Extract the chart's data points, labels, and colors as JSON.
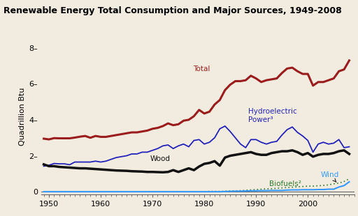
{
  "title": "Renewable Energy Total Consumption and Major Sources, 1949-2008",
  "ylabel": "Quadrillion Btu",
  "ylim": [
    -0.15,
    8.5
  ],
  "yticks": [
    0,
    2,
    4,
    6,
    8
  ],
  "xlim": [
    1948.5,
    2009
  ],
  "xticks": [
    1950,
    1960,
    1970,
    1980,
    1990,
    2000
  ],
  "background_color": "#f2ece0",
  "total_color": "#9b1c1c",
  "hydro_color": "#2222bb",
  "wood_color": "#111111",
  "biofuels_color": "#2d7a2d",
  "wind_color": "#3399ff",
  "years": [
    1949,
    1950,
    1951,
    1952,
    1953,
    1954,
    1955,
    1956,
    1957,
    1958,
    1959,
    1960,
    1961,
    1962,
    1963,
    1964,
    1965,
    1966,
    1967,
    1968,
    1969,
    1970,
    1971,
    1972,
    1973,
    1974,
    1975,
    1976,
    1977,
    1978,
    1979,
    1980,
    1981,
    1982,
    1983,
    1984,
    1985,
    1986,
    1987,
    1988,
    1989,
    1990,
    1991,
    1992,
    1993,
    1994,
    1995,
    1996,
    1997,
    1998,
    1999,
    2000,
    2001,
    2002,
    2003,
    2004,
    2005,
    2006,
    2007,
    2008
  ],
  "total": [
    2.95,
    2.91,
    2.98,
    2.97,
    2.97,
    2.97,
    3.01,
    3.06,
    3.1,
    3.0,
    3.1,
    3.05,
    3.05,
    3.1,
    3.15,
    3.2,
    3.25,
    3.3,
    3.3,
    3.35,
    3.4,
    3.5,
    3.55,
    3.65,
    3.8,
    3.7,
    3.75,
    3.95,
    4.0,
    4.2,
    4.55,
    4.35,
    4.45,
    4.85,
    5.1,
    5.65,
    5.95,
    6.15,
    6.15,
    6.2,
    6.45,
    6.3,
    6.1,
    6.2,
    6.25,
    6.3,
    6.6,
    6.85,
    6.9,
    6.7,
    6.55,
    6.55,
    5.9,
    6.1,
    6.1,
    6.2,
    6.3,
    6.7,
    6.8,
    7.3
  ],
  "hydro": [
    1.42,
    1.47,
    1.57,
    1.55,
    1.55,
    1.5,
    1.65,
    1.65,
    1.65,
    1.65,
    1.7,
    1.65,
    1.7,
    1.8,
    1.9,
    1.95,
    2.0,
    2.1,
    2.1,
    2.2,
    2.2,
    2.3,
    2.4,
    2.55,
    2.6,
    2.4,
    2.55,
    2.65,
    2.5,
    2.85,
    2.9,
    2.65,
    2.75,
    3.0,
    3.5,
    3.65,
    3.35,
    3.0,
    2.65,
    2.45,
    2.9,
    2.9,
    2.75,
    2.65,
    2.75,
    2.8,
    3.15,
    3.45,
    3.6,
    3.3,
    3.1,
    2.85,
    2.2,
    2.65,
    2.75,
    2.65,
    2.7,
    2.9,
    2.45,
    2.5
  ],
  "wood": [
    1.52,
    1.42,
    1.42,
    1.38,
    1.36,
    1.34,
    1.32,
    1.3,
    1.3,
    1.28,
    1.26,
    1.24,
    1.22,
    1.2,
    1.18,
    1.17,
    1.16,
    1.14,
    1.13,
    1.12,
    1.1,
    1.1,
    1.09,
    1.08,
    1.1,
    1.2,
    1.1,
    1.2,
    1.3,
    1.2,
    1.4,
    1.55,
    1.6,
    1.7,
    1.45,
    1.9,
    2.0,
    2.05,
    2.1,
    2.15,
    2.2,
    2.1,
    2.05,
    2.05,
    2.15,
    2.2,
    2.25,
    2.25,
    2.3,
    2.2,
    2.05,
    2.15,
    1.95,
    2.05,
    2.1,
    2.1,
    2.15,
    2.25,
    2.3,
    2.1
  ],
  "biofuels": [
    0.0,
    0.0,
    0.0,
    0.0,
    0.0,
    0.0,
    0.0,
    0.0,
    0.0,
    0.0,
    0.0,
    0.0,
    0.0,
    0.0,
    0.0,
    0.0,
    0.0,
    0.0,
    0.0,
    0.0,
    0.0,
    0.0,
    0.0,
    0.0,
    0.0,
    0.0,
    0.0,
    0.0,
    0.0,
    0.0,
    0.0,
    0.01,
    0.02,
    0.02,
    0.02,
    0.03,
    0.04,
    0.05,
    0.06,
    0.08,
    0.1,
    0.12,
    0.14,
    0.16,
    0.17,
    0.19,
    0.21,
    0.23,
    0.25,
    0.27,
    0.29,
    0.31,
    0.31,
    0.33,
    0.35,
    0.38,
    0.44,
    0.48,
    0.57,
    0.72
  ],
  "wind": [
    0.0,
    0.0,
    0.0,
    0.0,
    0.0,
    0.0,
    0.0,
    0.0,
    0.0,
    0.0,
    0.0,
    0.0,
    0.0,
    0.0,
    0.0,
    0.0,
    0.0,
    0.0,
    0.0,
    0.0,
    0.0,
    0.0,
    0.0,
    0.0,
    0.0,
    0.0,
    0.0,
    0.0,
    0.0,
    0.0,
    0.0,
    0.0,
    0.0,
    0.0,
    0.0,
    0.01,
    0.02,
    0.03,
    0.03,
    0.04,
    0.05,
    0.05,
    0.06,
    0.06,
    0.07,
    0.07,
    0.07,
    0.09,
    0.1,
    0.1,
    0.11,
    0.11,
    0.11,
    0.12,
    0.12,
    0.14,
    0.14,
    0.26,
    0.34,
    0.55
  ]
}
